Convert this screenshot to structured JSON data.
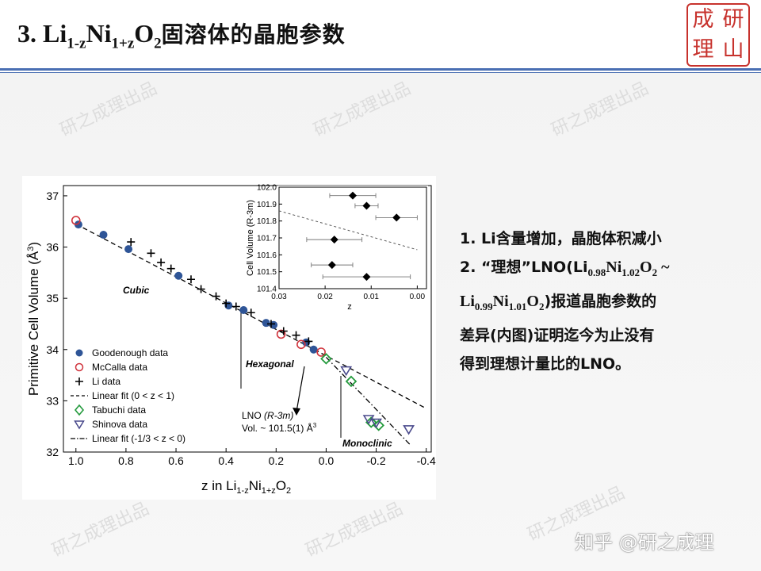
{
  "slide": {
    "title_prefix": "3. Li",
    "title_sub1": "1-z",
    "title_mid": "Ni",
    "title_sub2": "1+z",
    "title_o": "O",
    "title_sub3": "2",
    "title_cn": "固溶体的晶胞参数"
  },
  "seal": {
    "chars": [
      "成",
      "研",
      "理",
      "山"
    ]
  },
  "watermark": "研之成理出品",
  "credit": "知乎 @研之成理",
  "notes": {
    "line1": "1. Li含量增加，晶胞体积减小",
    "line2_a": "2. “理想”LNO(Li",
    "line2_s1": "0.98",
    "line2_b": "Ni",
    "line2_s2": "1.02",
    "line2_c": "O",
    "line2_s3": "2",
    "line2_d": " ~",
    "line3_a": "Li",
    "line3_s1": "0.99",
    "line3_b": "Ni",
    "line3_s2": "1.01",
    "line3_c": "O",
    "line3_s3": "2",
    "line3_d": ")报道晶胞参数的",
    "line4": "差异(内图)证明迄今为止没有",
    "line5": "得到理想计量比的LNO。"
  },
  "colors": {
    "title_rule": "#4a6fb3",
    "seal": "#c7322d",
    "goodenough": "#2f5597",
    "mccalla": "#d0333c",
    "tabuchi": "#239a3c",
    "shinova": "#4a4a8c"
  },
  "chart_data": [
    {
      "type": "scatter",
      "ylabel_pre": "Primitive Cell Volume (Å",
      "ylabel_sup": "3",
      "ylabel_post": ")",
      "xlabel_pre": "z in Li",
      "xlabel_s1": "1-z",
      "xlabel_mid": "Ni",
      "xlabel_s2": "1+z",
      "xlabel_o": "O",
      "xlabel_s3": "2",
      "xlim": [
        1.05,
        -0.42
      ],
      "ylim": [
        32,
        37.2
      ],
      "xticks": [
        1.0,
        0.8,
        0.6,
        0.4,
        0.2,
        0.0,
        -0.2,
        -0.4
      ],
      "xtick_labels": [
        "1.0",
        "0.8",
        "0.6",
        "0.4",
        "0.2",
        "0.0",
        "-0.2",
        "-0.4"
      ],
      "yticks": [
        32,
        33,
        34,
        35,
        36,
        37
      ],
      "ytick_labels": [
        "32",
        "33",
        "34",
        "35",
        "36",
        "37"
      ],
      "regions": [
        "Cubic",
        "Hexagonal",
        "Monoclinic"
      ],
      "annotation": {
        "lno": "LNO",
        "space_group": "(R-3m)",
        "vol": "Vol. ~ 101.5(1) Å",
        "vol_sup": "3"
      },
      "legend": [
        "Goodenough data",
        "McCalla data",
        "Li data",
        "Linear fit (0 < z < 1)",
        "Tabuchi data",
        "Shinova data",
        "Linear fit (-1/3 < z < 0)"
      ],
      "series": [
        {
          "name": "Goodenough data",
          "marker": "filled-circle",
          "x": [
            0.99,
            0.89,
            0.79,
            0.59,
            0.39,
            0.33,
            0.24,
            0.21,
            0.08,
            0.05
          ],
          "y": [
            36.44,
            36.24,
            35.96,
            35.44,
            34.86,
            34.77,
            34.52,
            34.48,
            34.14,
            34.0
          ]
        },
        {
          "name": "McCalla data",
          "marker": "open-circle",
          "x": [
            1.0,
            0.18,
            0.1,
            0.02
          ],
          "y": [
            36.52,
            34.3,
            34.1,
            33.95
          ]
        },
        {
          "name": "Li data",
          "marker": "plus",
          "x": [
            0.78,
            0.7,
            0.66,
            0.62,
            0.54,
            0.5,
            0.44,
            0.4,
            0.36,
            0.3,
            0.22,
            0.17,
            0.12,
            0.07
          ],
          "y": [
            36.1,
            35.88,
            35.7,
            35.58,
            35.37,
            35.18,
            35.04,
            34.9,
            34.84,
            34.72,
            34.5,
            34.36,
            34.28,
            34.16
          ]
        },
        {
          "name": "Tabuchi data",
          "marker": "open-diamond",
          "x": [
            0.0,
            -0.1,
            -0.18,
            -0.21
          ],
          "y": [
            33.82,
            33.38,
            32.58,
            32.52
          ]
        },
        {
          "name": "Shinova data",
          "marker": "open-triangle-down",
          "x": [
            -0.08,
            -0.17,
            -0.2,
            -0.33
          ],
          "y": [
            33.6,
            32.65,
            32.58,
            32.45
          ]
        }
      ],
      "fits": [
        {
          "name": "Linear fit (0 < z < 1)",
          "style": "dashed",
          "x": [
            1.0,
            -0.4
          ],
          "y": [
            36.45,
            32.85
          ]
        },
        {
          "name": "Linear fit (-1/3 < z < 0)",
          "style": "dash-dot",
          "x": [
            0.0,
            -0.34
          ],
          "y": [
            33.85,
            32.12
          ]
        }
      ]
    },
    {
      "type": "scatter",
      "ylabel": "Cell Volume (R-3m)",
      "xlabel": "z",
      "xlim": [
        0.03,
        -0.002
      ],
      "ylim": [
        101.4,
        102.0
      ],
      "xticks": [
        0.03,
        0.02,
        0.01,
        0.0
      ],
      "xtick_labels": [
        "0.03",
        "0.02",
        "0.01",
        "0.00"
      ],
      "yticks": [
        101.4,
        101.5,
        101.6,
        101.7,
        101.8,
        101.9,
        102.0
      ],
      "ytick_labels": [
        "101.4",
        "101.5",
        "101.6",
        "101.7",
        "101.8",
        "101.9",
        "102.0"
      ],
      "points": {
        "x": [
          0.014,
          0.011,
          0.0045,
          0.018,
          0.0185,
          0.011
        ],
        "y": [
          101.95,
          101.89,
          101.82,
          101.69,
          101.54,
          101.47
        ],
        "xerr": [
          0.005,
          0.0025,
          0.0045,
          0.006,
          0.0045,
          0.0095
        ]
      },
      "fit": {
        "style": "dashed",
        "x": [
          0.03,
          0.0
        ],
        "y": [
          101.86,
          101.63
        ]
      }
    }
  ]
}
